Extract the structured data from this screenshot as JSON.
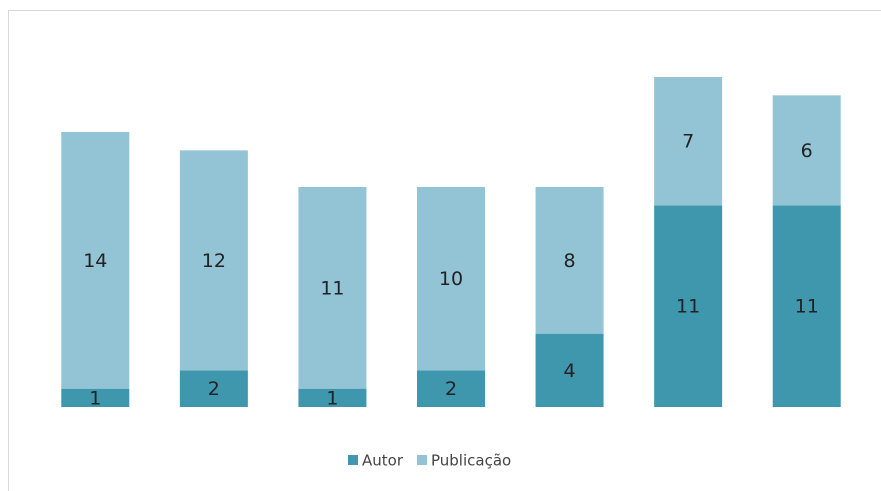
{
  "chart_data": {
    "type": "stacked_bar",
    "categories": [
      null,
      null,
      null,
      null,
      null,
      null,
      null
    ],
    "series": [
      {
        "name": "Autor",
        "color": "#3f97ad",
        "values": [
          1,
          2,
          1,
          2,
          4,
          11,
          11
        ]
      },
      {
        "name": "Publicação",
        "color": "#93c4d6",
        "values": [
          14,
          12,
          11,
          10,
          8,
          7,
          6
        ]
      }
    ],
    "legend": "bottom"
  }
}
